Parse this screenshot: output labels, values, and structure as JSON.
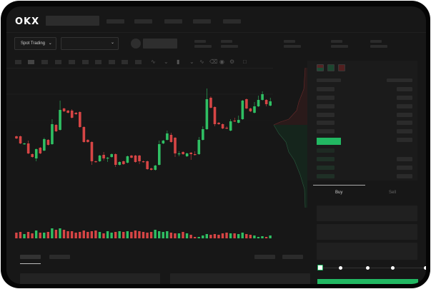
{
  "header": {
    "logo": "OKX",
    "market_select": "Spot Trading",
    "pair_select": ""
  },
  "orderform": {
    "tabs": [
      {
        "label": "Buy",
        "active": true
      },
      {
        "label": "Sell",
        "active": false
      }
    ],
    "leverage_steps": 5,
    "leverage_value": 0
  },
  "colors": {
    "up": "#2fbf63",
    "down": "#d64545",
    "accent": "#22b862",
    "background": "#171717"
  },
  "toolbar_icons": [
    "indicator-icon",
    "chevron-down-icon",
    "candle-type-icon",
    "chevron-down-icon",
    "line-tool-icon",
    "ruler-icon",
    "camera-icon",
    "settings-icon",
    "fullscreen-icon"
  ],
  "chart_data": {
    "type": "candlestick",
    "title": "",
    "xlabel": "",
    "ylabel": "",
    "grid": true,
    "candles": [
      [
        58,
        55,
        59,
        54
      ],
      [
        58,
        48,
        59,
        47
      ],
      [
        47,
        48,
        49,
        46
      ],
      [
        48,
        34,
        52,
        33
      ],
      [
        33,
        29,
        34,
        28
      ],
      [
        27,
        40,
        41,
        23
      ],
      [
        42,
        34,
        43,
        33
      ],
      [
        38,
        54,
        56,
        37
      ],
      [
        53,
        46,
        54,
        45
      ],
      [
        47,
        75,
        82,
        46
      ],
      [
        74,
        65,
        75,
        64
      ],
      [
        67,
        95,
        108,
        66
      ],
      [
        97,
        93,
        98,
        92
      ],
      [
        94,
        91,
        95,
        90
      ],
      [
        94,
        84,
        96,
        83
      ],
      [
        91,
        89,
        92,
        88
      ],
      [
        92,
        71,
        93,
        70
      ],
      [
        71,
        50,
        72,
        49
      ],
      [
        53,
        50,
        54,
        49
      ],
      [
        50,
        23,
        51,
        18
      ],
      [
        23,
        22,
        24,
        21
      ],
      [
        23,
        31,
        32,
        22
      ],
      [
        32,
        27,
        36,
        24
      ],
      [
        27,
        28,
        29,
        22
      ],
      [
        29,
        33,
        34,
        28
      ],
      [
        33,
        18,
        34,
        15
      ],
      [
        18,
        22,
        23,
        17
      ],
      [
        23,
        19,
        24,
        18
      ],
      [
        21,
        30,
        31,
        20
      ],
      [
        31,
        28,
        32,
        27
      ],
      [
        31,
        22,
        32,
        21
      ],
      [
        31,
        23,
        32,
        19
      ],
      [
        23,
        22,
        24,
        21
      ],
      [
        23,
        12,
        24,
        11
      ],
      [
        13,
        11,
        14,
        10
      ],
      [
        11,
        17,
        18,
        10
      ],
      [
        18,
        47,
        52,
        17
      ],
      [
        48,
        52,
        53,
        47
      ],
      [
        53,
        62,
        66,
        52
      ],
      [
        60,
        50,
        63,
        49
      ],
      [
        56,
        34,
        57,
        29
      ],
      [
        33,
        34,
        37,
        30
      ],
      [
        36,
        33,
        37,
        32
      ],
      [
        30,
        34,
        35,
        29
      ],
      [
        35,
        33,
        36,
        25
      ],
      [
        33,
        32,
        37,
        31
      ],
      [
        33,
        53,
        57,
        32
      ],
      [
        53,
        68,
        72,
        52
      ],
      [
        68,
        110,
        125,
        67
      ],
      [
        112,
        98,
        114,
        97
      ],
      [
        99,
        75,
        100,
        72
      ],
      [
        77,
        75,
        78,
        74
      ],
      [
        75,
        69,
        76,
        68
      ],
      [
        70,
        69,
        72,
        68
      ],
      [
        66,
        79,
        82,
        65
      ],
      [
        80,
        79,
        84,
        78
      ],
      [
        77,
        81,
        87,
        76
      ],
      [
        82,
        108,
        109,
        81
      ],
      [
        110,
        97,
        111,
        96
      ],
      [
        97,
        93,
        98,
        92
      ],
      [
        91,
        100,
        106,
        90
      ],
      [
        100,
        109,
        115,
        99
      ],
      [
        109,
        117,
        121,
        108
      ],
      [
        109,
        103,
        110,
        100
      ],
      [
        101,
        107,
        112,
        100
      ]
    ],
    "volumes": [
      8,
      9,
      6,
      9,
      7,
      11,
      8,
      8,
      9,
      14,
      12,
      14,
      12,
      10,
      10,
      8,
      9,
      11,
      9,
      10,
      11,
      9,
      7,
      10,
      8,
      9,
      10,
      9,
      10,
      9,
      11,
      10,
      9,
      8,
      9,
      12,
      10,
      9,
      10,
      8,
      7,
      7,
      9,
      7,
      5,
      2,
      2,
      4,
      6,
      5,
      6,
      5,
      7,
      8,
      7,
      7,
      6,
      8,
      6,
      5,
      4,
      2,
      3,
      2,
      4
    ]
  }
}
